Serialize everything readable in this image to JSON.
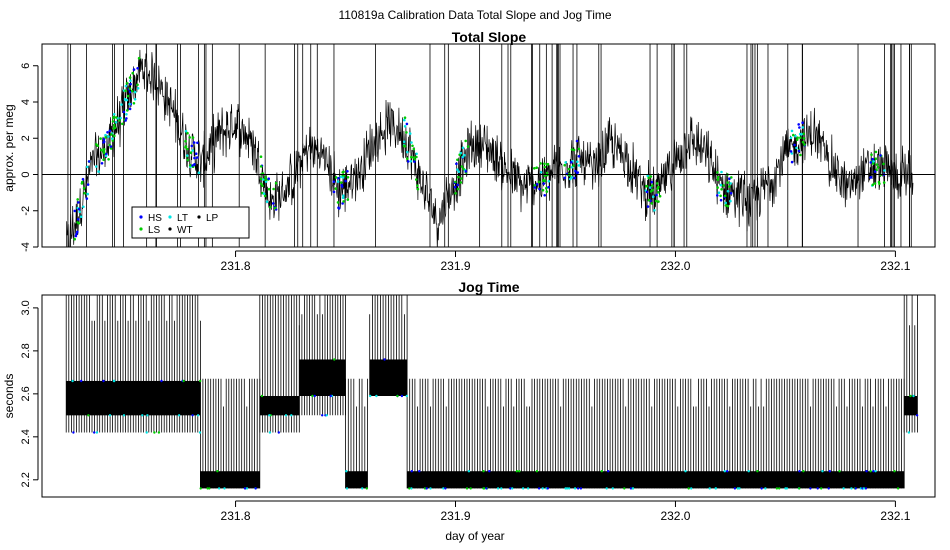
{
  "figure": {
    "title": "110819a   Calibration Data Total Slope and Jog Time",
    "xlabel": "day of year"
  },
  "chart_data": [
    {
      "type": "line",
      "title": "Total Slope",
      "ylabel": "approx. per meg",
      "xlim": [
        231.712,
        232.118
      ],
      "ylim": [
        -4,
        7.2
      ],
      "xticks": [
        231.8,
        231.9,
        232.0,
        232.1
      ],
      "xtick_labels": [
        "231.8",
        "231.9",
        "232.0",
        "232.1"
      ],
      "yticks": [
        -4,
        -2,
        0,
        2,
        4,
        6
      ],
      "ytick_labels": [
        "-4",
        "-2",
        "0",
        "2",
        "4",
        "6"
      ],
      "hline": 0,
      "x_range": [
        231.723,
        232.108
      ],
      "trend": {
        "x": [
          231.723,
          231.728,
          231.735,
          231.742,
          231.75,
          231.757,
          231.764,
          231.771,
          231.778,
          231.785,
          231.792,
          231.8,
          231.808,
          231.816,
          231.824,
          231.833,
          231.84,
          231.847,
          231.855,
          231.862,
          231.87,
          231.877,
          231.884,
          231.892,
          231.9,
          231.908,
          231.915,
          231.923,
          231.931,
          231.94,
          231.948,
          231.956,
          231.963,
          231.97,
          231.977,
          231.984,
          231.991,
          231.998,
          232.006,
          232.013,
          232.02,
          232.027,
          232.035,
          232.042,
          232.049,
          232.056,
          232.063,
          232.071,
          232.078,
          232.085,
          232.092,
          232.1,
          232.108
        ],
        "y": [
          -4.0,
          -2.3,
          0.6,
          1.6,
          3.9,
          5.8,
          5.3,
          3.6,
          1.6,
          0.6,
          2.1,
          2.9,
          1.7,
          -1.6,
          -0.7,
          1.5,
          1.1,
          -0.9,
          -0.1,
          1.6,
          2.8,
          2.2,
          -0.4,
          -2.5,
          -0.3,
          1.7,
          1.5,
          0.2,
          -0.8,
          -0.2,
          0.4,
          0.9,
          0.1,
          1.7,
          1.1,
          -0.6,
          -1.2,
          0.4,
          2.0,
          1.3,
          -0.6,
          -1.0,
          -1.6,
          -0.5,
          0.9,
          1.8,
          2.3,
          0.6,
          -0.8,
          0.1,
          0.4,
          -0.1,
          0.2
        ]
      },
      "noise_amplitude": 1.2,
      "legend": {
        "position": "bottom-left",
        "entries": [
          {
            "label": "HS",
            "color": "#0000ff"
          },
          {
            "label": "LT",
            "color": "#00e5e5"
          },
          {
            "label": "LP",
            "color": "#000000"
          },
          {
            "label": "LS",
            "color": "#00cc00"
          },
          {
            "label": "WT",
            "color": "#000000"
          }
        ]
      },
      "marker_clusters_x": [
        231.73,
        231.74,
        231.747,
        231.753,
        231.78,
        231.815,
        231.848,
        231.88,
        231.903,
        231.939,
        231.953,
        231.99,
        232.022,
        232.056,
        232.092
      ]
    },
    {
      "type": "line",
      "title": "Jog Time",
      "ylabel": "seconds",
      "xlim": [
        231.712,
        232.118
      ],
      "ylim": [
        2.12,
        3.06
      ],
      "xticks": [
        231.8,
        231.9,
        232.0,
        232.1
      ],
      "xtick_labels": [
        "231.8",
        "231.9",
        "232.0",
        "232.1"
      ],
      "yticks": [
        2.2,
        2.4,
        2.6,
        2.8,
        3.0
      ],
      "ytick_labels": [
        "2.2",
        "2.4",
        "2.6",
        "2.8",
        "3.0"
      ],
      "segments": [
        {
          "x": [
            231.723,
            231.784
          ],
          "low": 2.5,
          "high": 2.66,
          "spike_max": 3.06,
          "spike_min": 2.42
        },
        {
          "x": [
            231.784,
            231.811
          ],
          "low": 2.16,
          "high": 2.24,
          "spike_max": 2.67,
          "spike_min": 2.16
        },
        {
          "x": [
            231.811,
            231.829
          ],
          "low": 2.5,
          "high": 2.59,
          "spike_max": 3.06,
          "spike_min": 2.42
        },
        {
          "x": [
            231.829,
            231.85
          ],
          "low": 2.59,
          "high": 2.76,
          "spike_max": 3.06,
          "spike_min": 2.5
        },
        {
          "x": [
            231.85,
            231.86
          ],
          "low": 2.16,
          "high": 2.24,
          "spike_max": 2.67,
          "spike_min": 2.16
        },
        {
          "x": [
            231.861,
            231.878
          ],
          "low": 2.59,
          "high": 2.76,
          "spike_max": 3.06,
          "spike_min": 2.59
        },
        {
          "x": [
            231.878,
            232.104
          ],
          "low": 2.16,
          "high": 2.24,
          "spike_max": 2.67,
          "spike_min": 2.16
        },
        {
          "x": [
            232.104,
            232.11
          ],
          "low": 2.5,
          "high": 2.59,
          "spike_max": 3.06,
          "spike_min": 2.42
        }
      ],
      "marker_levels": [
        2.16,
        2.24,
        2.5,
        2.59,
        2.67
      ]
    }
  ]
}
